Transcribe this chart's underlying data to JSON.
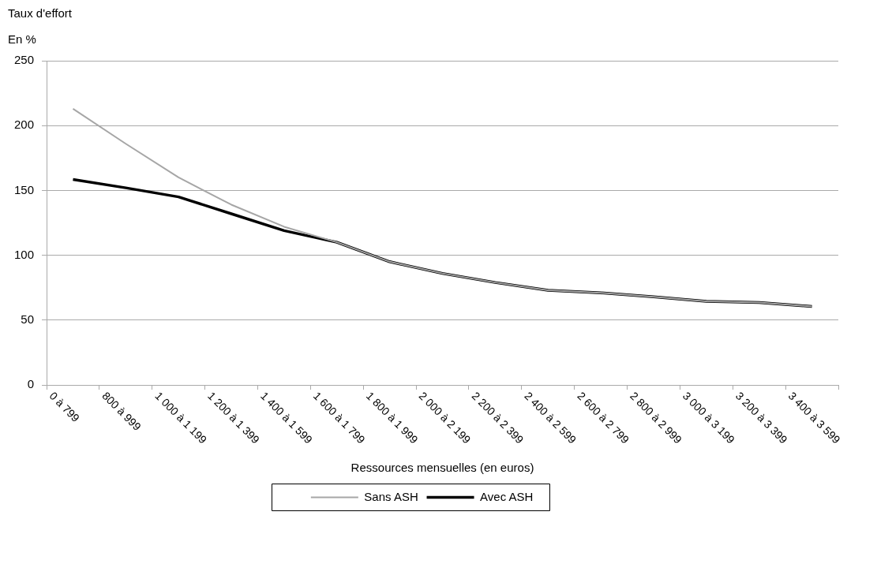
{
  "chart_data": {
    "type": "line",
    "title": "Taux d'effort",
    "ylabel": "En %",
    "xlabel": "Ressources mensuelles (en euros)",
    "categories": [
      "0 à 799",
      "800 à 999",
      "1 000 à 1 199",
      "1 200 à 1 399",
      "1 400 à 1 599",
      "1 600 à 1 799",
      "1 800 à 1 999",
      "2 000 à 2 199",
      "2 200 à 2 399",
      "2 400 à 2 599",
      "2 600 à 2 799",
      "2 800 à 2 999",
      "3 000 à 3 199",
      "3 200 à 3 399",
      "3 400 à 3 599"
    ],
    "series": [
      {
        "name": "Sans ASH",
        "color": "#a6a6a6",
        "values": [
          213,
          186,
          160,
          139,
          122,
          110,
          95,
          86,
          79,
          73,
          71,
          68,
          64.5,
          63.5,
          60.5
        ]
      },
      {
        "name": "Avec ASH",
        "color": "#000000",
        "values": [
          158.5,
          152,
          145,
          132,
          119,
          110,
          95,
          86,
          79,
          73,
          71,
          68,
          64.5,
          63.5,
          60.5
        ]
      }
    ],
    "ylim": [
      0,
      250
    ],
    "yticks": [
      0,
      50,
      100,
      150,
      200,
      250
    ],
    "grid": "y",
    "legend": "bottom",
    "marker": "none",
    "line_style": "solid"
  }
}
